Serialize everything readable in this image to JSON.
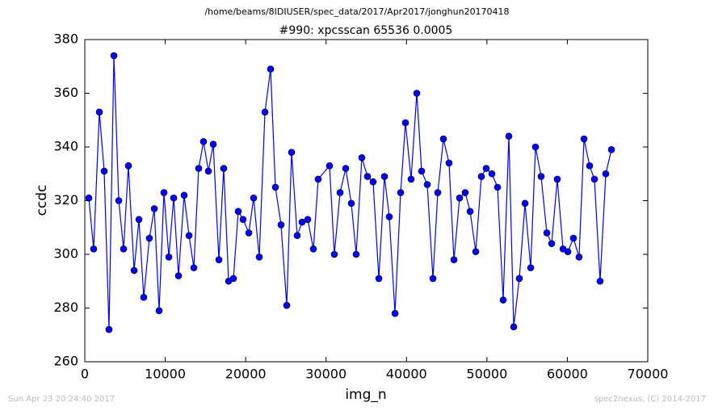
{
  "chart_data": {
    "type": "line",
    "suptitle": "/home/beams/8IDIUSER/spec_data/2017/Apr2017/jonghun20170418",
    "title": "#990: xpcsscan 65536 0.0005",
    "x_label": "img_n",
    "y_label": "ccdc",
    "color": "#0000ff",
    "marker": "circle",
    "xlim": [
      0,
      70000
    ],
    "ylim": [
      260,
      380
    ],
    "xticks": [
      0,
      10000,
      20000,
      30000,
      40000,
      50000,
      60000,
      70000
    ],
    "yticks": [
      260,
      280,
      300,
      320,
      340,
      360,
      380
    ],
    "x": [
      500,
      1100,
      1810,
      2410,
      3010,
      3620,
      4220,
      4820,
      5420,
      6130,
      6730,
      7330,
      8030,
      8640,
      9240,
      9840,
      10450,
      11050,
      11650,
      12350,
      12960,
      13560,
      14160,
      14760,
      15370,
      15970,
      16670,
      17270,
      17880,
      18480,
      19080,
      19680,
      20390,
      20990,
      21690,
      22400,
      23100,
      23700,
      24400,
      25110,
      25710,
      26410,
      27020,
      27720,
      28420,
      29020,
      30430,
      31030,
      31740,
      32440,
      33140,
      33740,
      34450,
      35150,
      35850,
      36560,
      37260,
      37860,
      38570,
      39270,
      39870,
      40570,
      41280,
      41880,
      42580,
      43290,
      43890,
      44590,
      45290,
      45900,
      46600,
      47300,
      47910,
      48610,
      49310,
      49910,
      50620,
      51320,
      52020,
      52730,
      53330,
      54030,
      54740,
      55440,
      56040,
      56740,
      57450,
      58050,
      58750,
      59460,
      60060,
      60760,
      61460,
      62070,
      62770,
      63370,
      64070,
      64780,
      65480
    ],
    "values": [
      321,
      302,
      353,
      331,
      272,
      374,
      320,
      302,
      333,
      294,
      313,
      284,
      306,
      317,
      279,
      323,
      299,
      321,
      292,
      322,
      307,
      295,
      332,
      342,
      331,
      341,
      298,
      332,
      290,
      291,
      316,
      313,
      308,
      321,
      299,
      353,
      369,
      325,
      311,
      281,
      338,
      307,
      312,
      313,
      302,
      328,
      333,
      300,
      323,
      332,
      319,
      300,
      336,
      329,
      327,
      291,
      329,
      314,
      278,
      323,
      349,
      328,
      360,
      331,
      326,
      291,
      323,
      343,
      334,
      298,
      321,
      323,
      316,
      301,
      329,
      332,
      330,
      325,
      283,
      344,
      273,
      291,
      319,
      295,
      340,
      329,
      308,
      304,
      328,
      302,
      301,
      306,
      299,
      343,
      333,
      328,
      290,
      330,
      339
    ]
  },
  "footer": {
    "left": "Sun Apr 23 20:24:40 2017",
    "right": "spec2nexus, (C) 2014-2017"
  }
}
